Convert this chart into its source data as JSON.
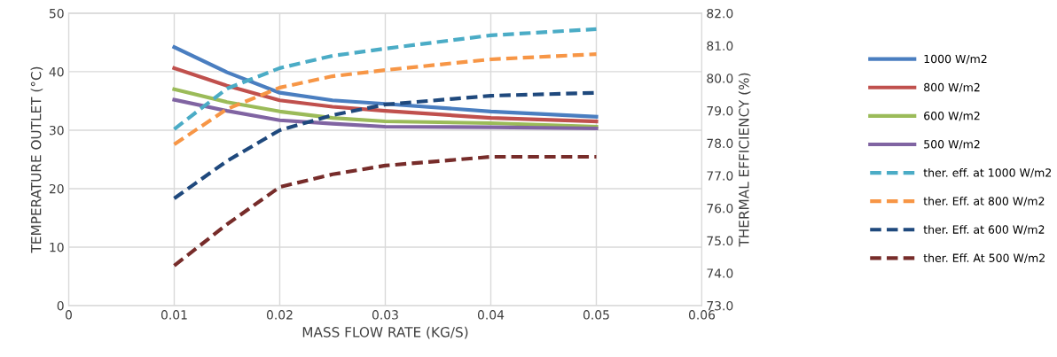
{
  "chart_data": {
    "type": "line",
    "xlabel": "MASS FLOW RATE (KG/S)",
    "ylabel": "TEMPERATURE OUTLET (°C)",
    "y2label": "THERMAL EFFICIENCY (%)",
    "x": [
      0.01,
      0.015,
      0.02,
      0.025,
      0.03,
      0.04,
      0.05
    ],
    "xlim": [
      0,
      0.06
    ],
    "xticks": [
      0,
      0.01,
      0.02,
      0.03,
      0.04,
      0.05,
      0.06
    ],
    "ylim": [
      0,
      50
    ],
    "yticks": [
      0,
      10,
      20,
      30,
      40,
      50
    ],
    "y2lim": [
      73,
      82
    ],
    "y2ticks": [
      {
        "value": 73,
        "label": "73.0"
      },
      {
        "value": 74,
        "label": "74.0"
      },
      {
        "value": 75,
        "label": "75.0"
      },
      {
        "value": 76,
        "label": "76.0"
      },
      {
        "value": 77,
        "label": "77.0"
      },
      {
        "value": 78,
        "label": "78.0"
      },
      {
        "value": 79,
        "label": "79.0"
      },
      {
        "value": 80,
        "label": "80.0"
      },
      {
        "value": 81,
        "label": "81.0"
      },
      {
        "value": 82,
        "label": "82.0"
      }
    ],
    "grid": true,
    "legend": "right",
    "marker": "none",
    "series": [
      {
        "name": "1000 W/m2",
        "color": "#4a7ec0",
        "line_style": "solid",
        "values": [
          44.2,
          39.9,
          36.4,
          35.1,
          34.5,
          33.2,
          32.3
        ]
      },
      {
        "name": "800 W/m2",
        "color": "#c0504d",
        "line_style": "solid",
        "values": [
          40.6,
          37.6,
          35.1,
          34.0,
          33.3,
          32.1,
          31.5
        ]
      },
      {
        "name": "600 W/m2",
        "color": "#9bbb59",
        "line_style": "solid",
        "values": [
          37.0,
          34.8,
          33.2,
          32.1,
          31.5,
          31.2,
          30.6
        ]
      },
      {
        "name": "500 W/m2",
        "color": "#8064a2",
        "line_style": "solid",
        "values": [
          35.2,
          33.3,
          31.7,
          31.1,
          30.6,
          30.5,
          30.3
        ]
      },
      {
        "name": "ther. eff. at 1000 W/m2",
        "color": "#4bacc6",
        "line_style": "dashed",
        "axis": "y2",
        "values": [
          78.43,
          79.68,
          80.31,
          80.69,
          80.91,
          81.32,
          81.51
        ]
      },
      {
        "name": "ther. Eff. at 800 W/m2",
        "color": "#f79646",
        "line_style": "dashed",
        "axis": "y2",
        "values": [
          77.96,
          79.05,
          79.71,
          80.06,
          80.25,
          80.58,
          80.74
        ]
      },
      {
        "name": "ther. Eff. at 600 W/m2",
        "color": "#1f497d",
        "line_style": "dashed",
        "axis": "y2",
        "values": [
          76.3,
          77.45,
          78.4,
          78.86,
          79.19,
          79.46,
          79.55
        ]
      },
      {
        "name": "ther. Eff. At 500 W/m2",
        "color": "#772c2a",
        "line_style": "dashed",
        "axis": "y2",
        "values": [
          74.23,
          75.5,
          76.65,
          77.04,
          77.31,
          77.58,
          77.58
        ]
      }
    ]
  }
}
